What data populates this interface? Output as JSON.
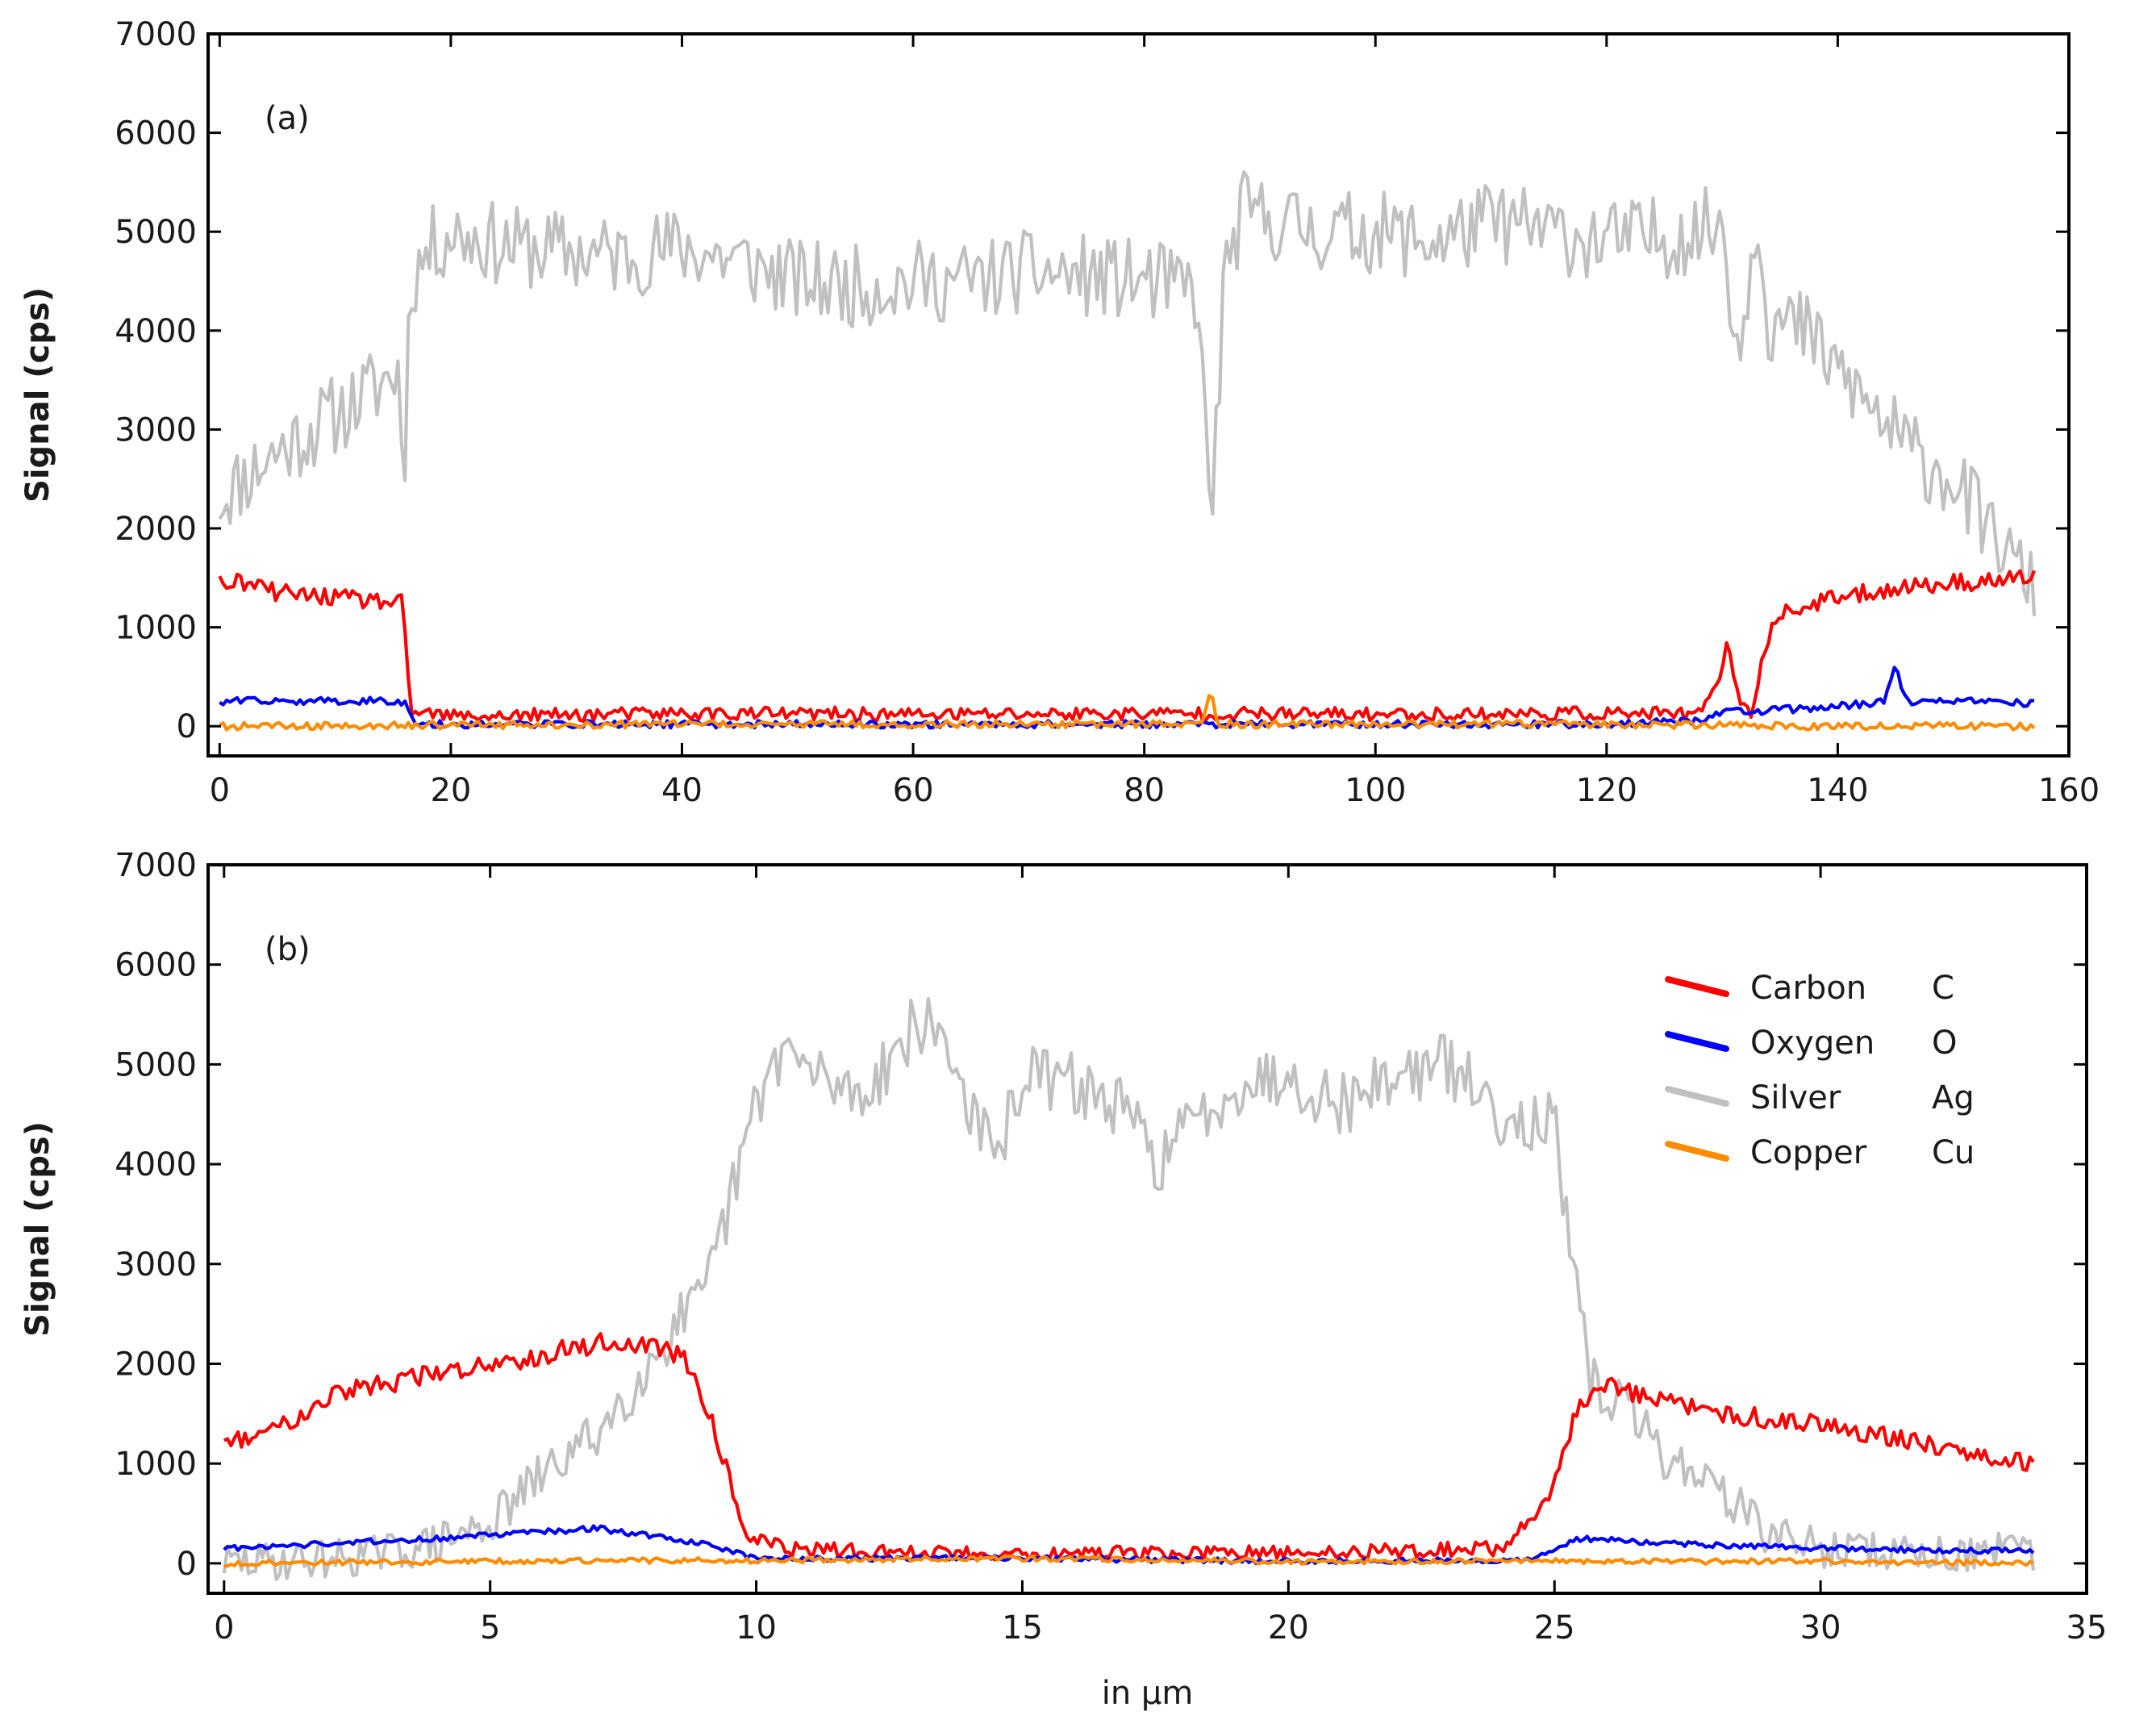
{
  "chart_data": [
    {
      "type": "line",
      "panel_label": "(a)",
      "title": "",
      "xlabel": "",
      "ylabel": "Signal (cps)",
      "xlim": [
        -1,
        160
      ],
      "ylim": [
        -300,
        7000
      ],
      "xticks": [
        0,
        20,
        40,
        60,
        80,
        100,
        120,
        140,
        160
      ],
      "xtick_labels": [
        "0",
        "20",
        "40",
        "60",
        "80",
        "100",
        "120",
        "140",
        "160"
      ],
      "yticks": [
        0,
        1000,
        2000,
        3000,
        4000,
        5000,
        6000,
        7000
      ],
      "ytick_labels": [
        "0",
        "1000",
        "2000",
        "3000",
        "4000",
        "5000",
        "6000",
        "7000"
      ],
      "grid": false,
      "noise_seed": 11,
      "series": [
        {
          "name": "Silver Ag",
          "color": "#c0c0c0",
          "x_range": [
            0,
            157
          ],
          "n_points": 520,
          "noise": 420,
          "x": [
            0,
            4,
            8,
            12,
            15.5,
            15.9,
            16.5,
            18,
            20,
            25,
            30,
            35,
            40,
            45,
            50,
            55,
            60,
            65,
            70,
            75,
            80,
            84.5,
            85.8,
            87,
            88.5,
            95,
            100,
            105,
            110,
            115,
            120,
            125,
            128,
            130,
            131.5,
            133,
            134,
            137,
            140,
            143,
            146,
            150,
            153,
            157
          ],
          "y": [
            2300,
            2700,
            3000,
            3300,
            3600,
            2400,
            4500,
            4800,
            5000,
            4850,
            4800,
            4750,
            4850,
            4700,
            4500,
            4450,
            4500,
            4500,
            4600,
            4550,
            4500,
            4400,
            2100,
            4600,
            5200,
            5000,
            5000,
            4900,
            5100,
            5000,
            4900,
            4950,
            5000,
            5100,
            3700,
            5300,
            4100,
            4000,
            3600,
            3200,
            2800,
            2500,
            2000,
            1400
          ]
        },
        {
          "name": "Carbon C",
          "color": "#ff0000",
          "x_range": [
            0,
            157
          ],
          "n_points": 520,
          "noise": 110,
          "x": [
            0,
            2,
            5,
            10,
            15,
            15.8,
            16.5,
            20,
            40,
            60,
            80,
            100,
            120,
            128,
            129,
            130.5,
            131.5,
            132.5,
            133.5,
            134.5,
            137,
            140,
            145,
            150,
            157
          ],
          "y": [
            1450,
            1450,
            1350,
            1300,
            1250,
            1250,
            150,
            100,
            130,
            120,
            130,
            120,
            130,
            120,
            250,
            820,
            300,
            80,
            700,
            1100,
            1200,
            1300,
            1400,
            1450,
            1500
          ]
        },
        {
          "name": "Oxygen O",
          "color": "#0000ff",
          "x_range": [
            0,
            157
          ],
          "n_points": 520,
          "noise": 60,
          "x": [
            0,
            15,
            16.2,
            17,
            60,
            120,
            128,
            130,
            133,
            140,
            144,
            145,
            146,
            150,
            157
          ],
          "y": [
            250,
            260,
            230,
            20,
            20,
            20,
            60,
            150,
            150,
            200,
            250,
            600,
            250,
            250,
            230
          ]
        },
        {
          "name": "Copper Cu",
          "color": "#ff8c00",
          "x_range": [
            0,
            157
          ],
          "n_points": 520,
          "noise": 60,
          "x": [
            0,
            20,
            40,
            60,
            85,
            85.8,
            86.3,
            87,
            120,
            140,
            157
          ],
          "y": [
            0,
            10,
            20,
            20,
            20,
            400,
            20,
            20,
            20,
            0,
            0
          ]
        }
      ]
    },
    {
      "type": "line",
      "panel_label": "(b)",
      "title": "",
      "xlabel": "in µm",
      "ylabel": "Signal (cps)",
      "xlim": [
        -0.3,
        35
      ],
      "ylim": [
        -300,
        7000
      ],
      "xticks": [
        0,
        5,
        10,
        15,
        20,
        25,
        30,
        35
      ],
      "xtick_labels": [
        "0",
        "5",
        "10",
        "15",
        "20",
        "25",
        "30",
        "35"
      ],
      "yticks": [
        0,
        1000,
        2000,
        3000,
        4000,
        5000,
        6000,
        7000
      ],
      "ytick_labels": [
        "0",
        "1000",
        "2000",
        "3000",
        "4000",
        "5000",
        "6000",
        "7000"
      ],
      "grid": false,
      "noise_seed": 29,
      "legend": {
        "placement": "top-right",
        "entries": [
          {
            "name": "Carbon",
            "symbol": "C",
            "color": "#ff0000"
          },
          {
            "name": "Oxygen",
            "symbol": "O",
            "color": "#0000ff"
          },
          {
            "name": "Silver",
            "symbol": "Ag",
            "color": "#c0c0c0"
          },
          {
            "name": "Copper",
            "symbol": "Cu",
            "color": "#ff8c00"
          }
        ]
      },
      "series": [
        {
          "name": "Silver Ag",
          "color": "#c0c0c0",
          "x_range": [
            0,
            34
          ],
          "n_points": 520,
          "noise": 320,
          "x": [
            0,
            2,
            3,
            4,
            5,
            6,
            7,
            8,
            8.5,
            9,
            9.5,
            10,
            10.5,
            11,
            12,
            13,
            13.5,
            14,
            14.5,
            15,
            16,
            17,
            17.5,
            18,
            19,
            20,
            21,
            22,
            23,
            24,
            25,
            25.3,
            25.7,
            26.5,
            27,
            28,
            29,
            30,
            32,
            34
          ],
          "y": [
            0,
            50,
            100,
            200,
            400,
            900,
            1300,
            2000,
            2400,
            2600,
            3600,
            4600,
            5200,
            4900,
            4700,
            5400,
            5300,
            4600,
            4000,
            4900,
            4800,
            4500,
            4000,
            4300,
            4800,
            4900,
            4600,
            4900,
            5000,
            4500,
            4400,
            3000,
            1800,
            1500,
            1100,
            800,
            300,
            150,
            100,
            100
          ]
        },
        {
          "name": "Carbon C",
          "color": "#ff0000",
          "x_range": [
            0,
            34
          ],
          "n_points": 520,
          "noise": 120,
          "x": [
            0,
            1,
            2,
            3,
            4,
            5,
            6,
            7,
            8,
            8.8,
            9.3,
            9.8,
            10.5,
            12,
            15,
            20,
            24,
            24.5,
            25,
            25.4,
            25.8,
            26.5,
            28,
            30,
            32,
            34
          ],
          "y": [
            1200,
            1350,
            1700,
            1800,
            1900,
            2000,
            2100,
            2200,
            2200,
            2000,
            1200,
            300,
            150,
            120,
            100,
            100,
            150,
            400,
            800,
            1500,
            1800,
            1700,
            1500,
            1400,
            1200,
            1000
          ]
        },
        {
          "name": "Oxygen O",
          "color": "#0000ff",
          "x_range": [
            0,
            34
          ],
          "n_points": 520,
          "noise": 45,
          "x": [
            0,
            2,
            4,
            7,
            9,
            10,
            15,
            20,
            24.5,
            25.5,
            27,
            30,
            34
          ],
          "y": [
            150,
            200,
            250,
            350,
            200,
            50,
            50,
            20,
            30,
            250,
            200,
            150,
            120
          ]
        },
        {
          "name": "Copper Cu",
          "color": "#ff8c00",
          "x_range": [
            0,
            34
          ],
          "n_points": 520,
          "noise": 45,
          "x": [
            0,
            5,
            10,
            15,
            20,
            25,
            30,
            34
          ],
          "y": [
            0,
            20,
            30,
            50,
            20,
            20,
            20,
            0
          ]
        }
      ]
    }
  ]
}
